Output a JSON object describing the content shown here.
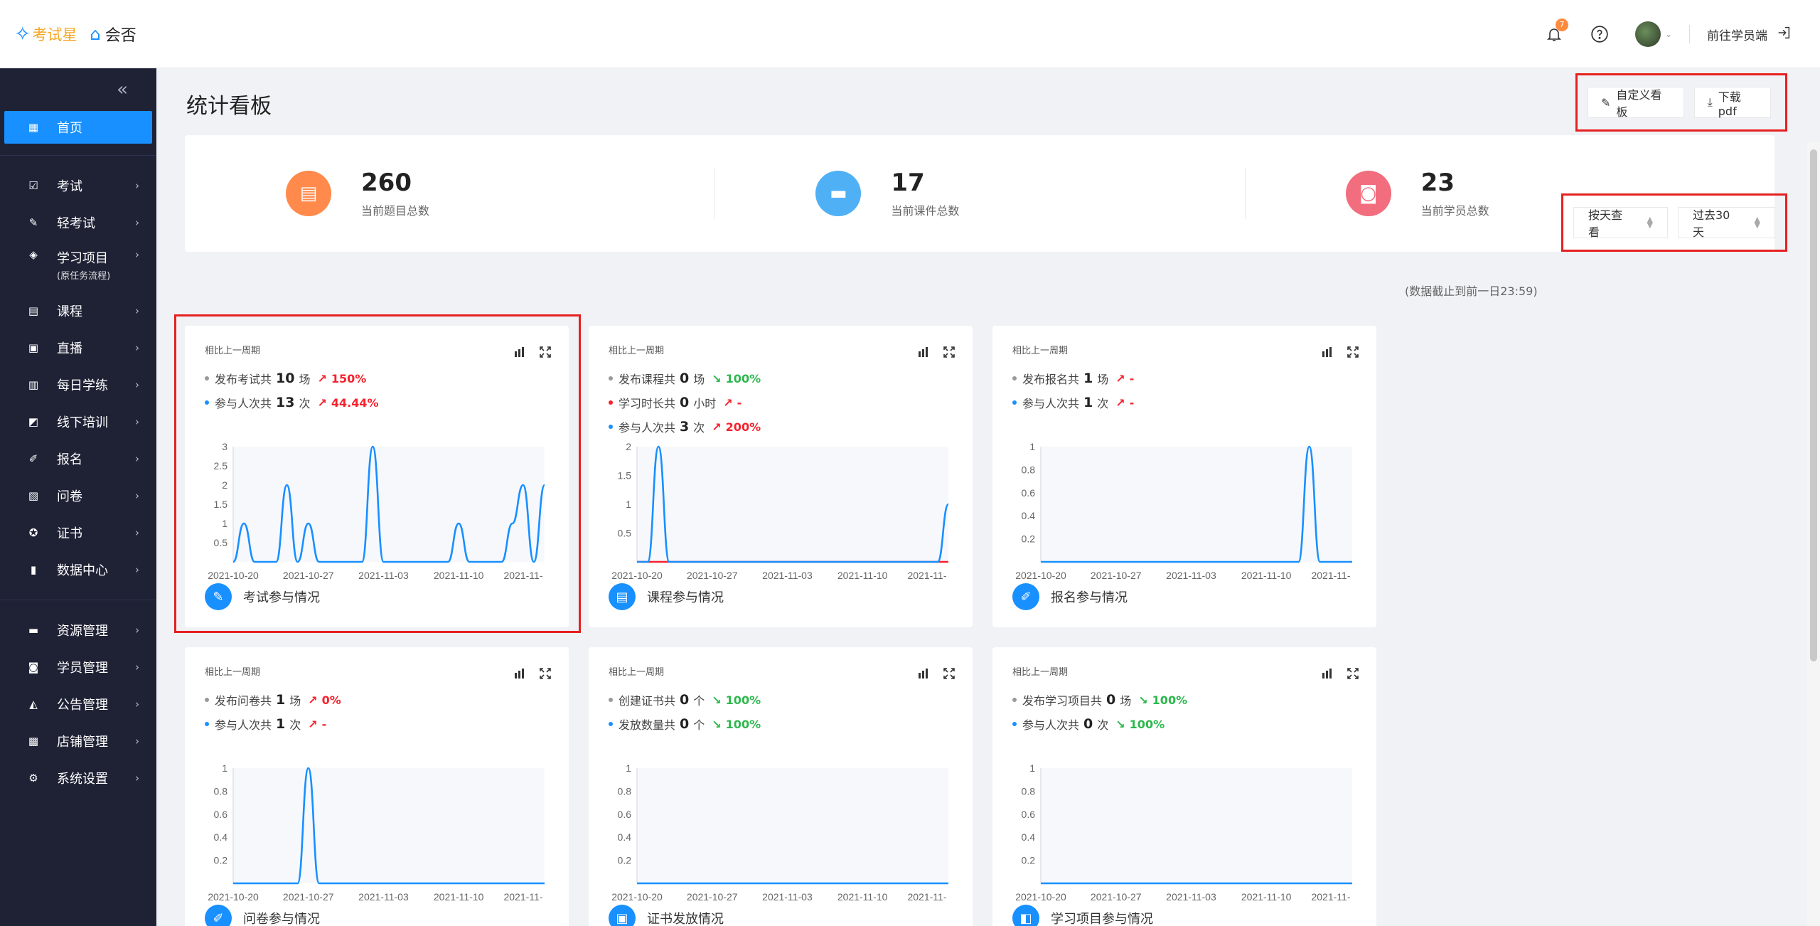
{
  "header": {
    "logo_primary": "考试星",
    "logo_secondary": "会否",
    "notification_count": "7",
    "goto_student": "前往学员端"
  },
  "sidebar": {
    "items": [
      {
        "label": "首页",
        "icon": "grid-icon",
        "active": true
      },
      {
        "label": "考试",
        "icon": "exam-icon"
      },
      {
        "label": "轻考试",
        "icon": "light-exam-icon"
      },
      {
        "label": "学习项目",
        "sub": "(原任务流程)",
        "icon": "project-icon"
      },
      {
        "label": "课程",
        "icon": "book-icon"
      },
      {
        "label": "直播",
        "icon": "live-icon"
      },
      {
        "label": "每日学练",
        "icon": "calendar-icon"
      },
      {
        "label": "线下培训",
        "icon": "training-icon"
      },
      {
        "label": "报名",
        "icon": "signup-icon"
      },
      {
        "label": "问卷",
        "icon": "survey-icon"
      },
      {
        "label": "证书",
        "icon": "certificate-icon"
      },
      {
        "label": "数据中心",
        "icon": "chart-icon"
      },
      {
        "label": "资源管理",
        "icon": "folder-icon"
      },
      {
        "label": "学员管理",
        "icon": "user-icon"
      },
      {
        "label": "公告管理",
        "icon": "notice-icon"
      },
      {
        "label": "店铺管理",
        "icon": "shop-icon"
      },
      {
        "label": "系统设置",
        "icon": "gear-icon"
      }
    ]
  },
  "page": {
    "title": "统计看板",
    "customize_label": "自定义看板",
    "download_label": "下载pdf",
    "data_note": "(数据截止到前一日23:59)",
    "view_by": "按天查看",
    "range": "过去30天"
  },
  "stats": [
    {
      "value": "260",
      "label": "当前题目总数",
      "color": "#ff8a4c",
      "icon": "clipboard-icon"
    },
    {
      "value": "17",
      "label": "当前课件总数",
      "color": "#4fb0f5",
      "icon": "folder-icon"
    },
    {
      "value": "23",
      "label": "当前学员总数",
      "color": "#f26d7d",
      "icon": "badge-icon"
    }
  ],
  "x_ticks": [
    "2021-10-20",
    "2021-10-27",
    "2021-11-03",
    "2021-11-10",
    "2021-11-"
  ],
  "cards": [
    {
      "head": "相比上一周期",
      "footer": "考试参与情况",
      "metrics": [
        {
          "dot": "#999999",
          "pre": "发布考试共",
          "num": "10",
          "unit": "场",
          "trend": "150%",
          "dir": "up"
        },
        {
          "dot": "#1890ff",
          "pre": "参与人次共",
          "num": "13",
          "unit": "次",
          "trend": "44.44%",
          "dir": "up"
        }
      ],
      "chart_data": {
        "type": "line",
        "ylim": [
          0,
          3
        ],
        "y_ticks": [
          "0.5",
          "1",
          "1.5",
          "2",
          "2.5",
          "3"
        ],
        "x": [
          "2021-10-20",
          "2021-10-21",
          "2021-10-22",
          "2021-10-23",
          "2021-10-24",
          "2021-10-25",
          "2021-10-26",
          "2021-10-27",
          "2021-10-28",
          "2021-10-29",
          "2021-10-30",
          "2021-10-31",
          "2021-11-01",
          "2021-11-02",
          "2021-11-03",
          "2021-11-04",
          "2021-11-05",
          "2021-11-06",
          "2021-11-07",
          "2021-11-08",
          "2021-11-09",
          "2021-11-10",
          "2021-11-11",
          "2021-11-12",
          "2021-11-13",
          "2021-11-14",
          "2021-11-15",
          "2021-11-16",
          "2021-11-17",
          "2021-11-18"
        ],
        "series": [
          {
            "color": "#1890ff",
            "values": [
              0,
              1,
              0,
              0,
              0,
              2,
              0,
              1,
              0,
              0,
              0,
              0,
              0,
              3,
              0,
              0,
              0,
              0,
              0,
              0,
              0,
              1,
              0,
              0,
              0,
              0,
              1,
              2,
              0,
              2
            ]
          }
        ]
      }
    },
    {
      "head": "相比上一周期",
      "footer": "课程参与情况",
      "metrics": [
        {
          "dot": "#999999",
          "pre": "发布课程共",
          "num": "0",
          "unit": "场",
          "trend": "100%",
          "dir": "down"
        },
        {
          "dot": "#f5222d",
          "pre": "学习时长共",
          "num": "0",
          "unit": "小时",
          "trend": "-",
          "dir": "up"
        },
        {
          "dot": "#1890ff",
          "pre": "参与人次共",
          "num": "3",
          "unit": "次",
          "trend": "200%",
          "dir": "up"
        }
      ],
      "chart_data": {
        "type": "line",
        "ylim": [
          0,
          2
        ],
        "y_ticks": [
          "0.5",
          "1",
          "1.5",
          "2"
        ],
        "x": [
          "2021-10-20",
          "2021-10-21",
          "2021-10-22",
          "2021-10-23",
          "2021-10-24",
          "2021-10-25",
          "2021-10-26",
          "2021-10-27",
          "2021-10-28",
          "2021-10-29",
          "2021-10-30",
          "2021-10-31",
          "2021-11-01",
          "2021-11-02",
          "2021-11-03",
          "2021-11-04",
          "2021-11-05",
          "2021-11-06",
          "2021-11-07",
          "2021-11-08",
          "2021-11-09",
          "2021-11-10",
          "2021-11-11",
          "2021-11-12",
          "2021-11-13",
          "2021-11-14",
          "2021-11-15",
          "2021-11-16",
          "2021-11-17",
          "2021-11-18"
        ],
        "series": [
          {
            "color": "#1890ff",
            "values": [
              0,
              0,
              2,
              0,
              0,
              0,
              0,
              0,
              0,
              0,
              0,
              0,
              0,
              0,
              0,
              0,
              0,
              0,
              0,
              0,
              0,
              0,
              0,
              0,
              0,
              0,
              0,
              0,
              0,
              1
            ]
          },
          {
            "color": "#f5222d",
            "values": [
              0,
              0,
              0,
              0,
              0,
              0,
              0,
              0,
              0,
              0,
              0,
              0,
              0,
              0,
              0,
              0,
              0,
              0,
              0,
              0,
              0,
              0,
              0,
              0,
              0,
              0,
              0,
              0,
              0,
              0
            ]
          }
        ]
      }
    },
    {
      "head": "相比上一周期",
      "footer": "报名参与情况",
      "metrics": [
        {
          "dot": "#999999",
          "pre": "发布报名共",
          "num": "1",
          "unit": "场",
          "trend": "-",
          "dir": "up"
        },
        {
          "dot": "#1890ff",
          "pre": "参与人次共",
          "num": "1",
          "unit": "次",
          "trend": "-",
          "dir": "up"
        }
      ],
      "chart_data": {
        "type": "line",
        "ylim": [
          0,
          1
        ],
        "y_ticks": [
          "0.2",
          "0.4",
          "0.6",
          "0.8",
          "1"
        ],
        "x": [
          "2021-10-20",
          "2021-10-21",
          "2021-10-22",
          "2021-10-23",
          "2021-10-24",
          "2021-10-25",
          "2021-10-26",
          "2021-10-27",
          "2021-10-28",
          "2021-10-29",
          "2021-10-30",
          "2021-10-31",
          "2021-11-01",
          "2021-11-02",
          "2021-11-03",
          "2021-11-04",
          "2021-11-05",
          "2021-11-06",
          "2021-11-07",
          "2021-11-08",
          "2021-11-09",
          "2021-11-10",
          "2021-11-11",
          "2021-11-12",
          "2021-11-13",
          "2021-11-14",
          "2021-11-15",
          "2021-11-16",
          "2021-11-17",
          "2021-11-18"
        ],
        "series": [
          {
            "color": "#1890ff",
            "values": [
              0,
              0,
              0,
              0,
              0,
              0,
              0,
              0,
              0,
              0,
              0,
              0,
              0,
              0,
              0,
              0,
              0,
              0,
              0,
              0,
              0,
              0,
              0,
              0,
              0,
              1,
              0,
              0,
              0,
              0
            ]
          }
        ]
      }
    },
    {
      "head": "相比上一周期",
      "footer": "问卷参与情况",
      "metrics": [
        {
          "dot": "#999999",
          "pre": "发布问卷共",
          "num": "1",
          "unit": "场",
          "trend": "0%",
          "dir": "up"
        },
        {
          "dot": "#1890ff",
          "pre": "参与人次共",
          "num": "1",
          "unit": "次",
          "trend": "-",
          "dir": "up"
        }
      ],
      "chart_data": {
        "type": "line",
        "ylim": [
          0,
          1
        ],
        "y_ticks": [
          "0.2",
          "0.4",
          "0.6",
          "0.8",
          "1"
        ],
        "x": [
          "2021-10-20",
          "2021-10-21",
          "2021-10-22",
          "2021-10-23",
          "2021-10-24",
          "2021-10-25",
          "2021-10-26",
          "2021-10-27",
          "2021-10-28",
          "2021-10-29",
          "2021-10-30",
          "2021-10-31",
          "2021-11-01",
          "2021-11-02",
          "2021-11-03",
          "2021-11-04",
          "2021-11-05",
          "2021-11-06",
          "2021-11-07",
          "2021-11-08",
          "2021-11-09",
          "2021-11-10",
          "2021-11-11",
          "2021-11-12",
          "2021-11-13",
          "2021-11-14",
          "2021-11-15",
          "2021-11-16",
          "2021-11-17",
          "2021-11-18"
        ],
        "series": [
          {
            "color": "#1890ff",
            "values": [
              0,
              0,
              0,
              0,
              0,
              0,
              0,
              1,
              0,
              0,
              0,
              0,
              0,
              0,
              0,
              0,
              0,
              0,
              0,
              0,
              0,
              0,
              0,
              0,
              0,
              0,
              0,
              0,
              0,
              0
            ]
          }
        ]
      }
    },
    {
      "head": "相比上一周期",
      "footer": "证书发放情况",
      "metrics": [
        {
          "dot": "#999999",
          "pre": "创建证书共",
          "num": "0",
          "unit": "个",
          "trend": "100%",
          "dir": "down"
        },
        {
          "dot": "#1890ff",
          "pre": "发放数量共",
          "num": "0",
          "unit": "个",
          "trend": "100%",
          "dir": "down"
        }
      ],
      "chart_data": {
        "type": "line",
        "ylim": [
          0,
          1
        ],
        "y_ticks": [
          "0.2",
          "0.4",
          "0.6",
          "0.8",
          "1"
        ],
        "x": [
          "2021-10-20",
          "2021-10-21",
          "2021-10-22",
          "2021-10-23",
          "2021-10-24",
          "2021-10-25",
          "2021-10-26",
          "2021-10-27",
          "2021-10-28",
          "2021-10-29",
          "2021-10-30",
          "2021-10-31",
          "2021-11-01",
          "2021-11-02",
          "2021-11-03",
          "2021-11-04",
          "2021-11-05",
          "2021-11-06",
          "2021-11-07",
          "2021-11-08",
          "2021-11-09",
          "2021-11-10",
          "2021-11-11",
          "2021-11-12",
          "2021-11-13",
          "2021-11-14",
          "2021-11-15",
          "2021-11-16",
          "2021-11-17",
          "2021-11-18"
        ],
        "series": [
          {
            "color": "#1890ff",
            "values": [
              0,
              0,
              0,
              0,
              0,
              0,
              0,
              0,
              0,
              0,
              0,
              0,
              0,
              0,
              0,
              0,
              0,
              0,
              0,
              0,
              0,
              0,
              0,
              0,
              0,
              0,
              0,
              0,
              0,
              0
            ]
          }
        ]
      }
    },
    {
      "head": "相比上一周期",
      "footer": "学习项目参与情况",
      "metrics": [
        {
          "dot": "#999999",
          "pre": "发布学习项目共",
          "num": "0",
          "unit": "场",
          "trend": "100%",
          "dir": "down"
        },
        {
          "dot": "#1890ff",
          "pre": "参与人次共",
          "num": "0",
          "unit": "次",
          "trend": "100%",
          "dir": "down"
        }
      ],
      "chart_data": {
        "type": "line",
        "ylim": [
          0,
          1
        ],
        "y_ticks": [
          "0.2",
          "0.4",
          "0.6",
          "0.8",
          "1"
        ],
        "x": [
          "2021-10-20",
          "2021-10-21",
          "2021-10-22",
          "2021-10-23",
          "2021-10-24",
          "2021-10-25",
          "2021-10-26",
          "2021-10-27",
          "2021-10-28",
          "2021-10-29",
          "2021-10-30",
          "2021-10-31",
          "2021-11-01",
          "2021-11-02",
          "2021-11-03",
          "2021-11-04",
          "2021-11-05",
          "2021-11-06",
          "2021-11-07",
          "2021-11-08",
          "2021-11-09",
          "2021-11-10",
          "2021-11-11",
          "2021-11-12",
          "2021-11-13",
          "2021-11-14",
          "2021-11-15",
          "2021-11-16",
          "2021-11-17",
          "2021-11-18"
        ],
        "series": [
          {
            "color": "#1890ff",
            "values": [
              0,
              0,
              0,
              0,
              0,
              0,
              0,
              0,
              0,
              0,
              0,
              0,
              0,
              0,
              0,
              0,
              0,
              0,
              0,
              0,
              0,
              0,
              0,
              0,
              0,
              0,
              0,
              0,
              0,
              0
            ]
          }
        ]
      }
    }
  ]
}
